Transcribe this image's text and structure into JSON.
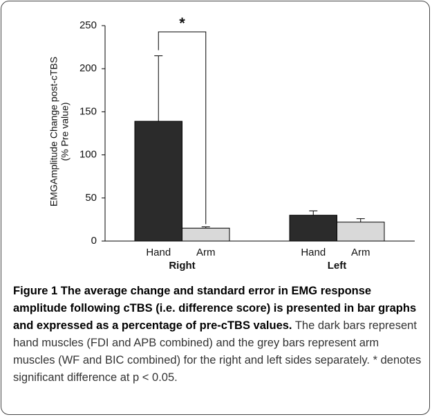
{
  "chart_data": {
    "type": "bar",
    "y_label": [
      "EMGAmplitude Change post-cTBS",
      "(% Pre value)"
    ],
    "categories": [
      "Right",
      "Left"
    ],
    "series": [
      {
        "name": "Hand",
        "color": "#2b2b2b",
        "values": [
          139,
          30
        ],
        "errors": [
          76,
          5
        ]
      },
      {
        "name": "Arm",
        "color": "#d9d9d9",
        "values": [
          15,
          22
        ],
        "errors": [
          1.5,
          4
        ]
      }
    ],
    "annotation": "*",
    "ylim": [
      0,
      250
    ],
    "yticks": [
      0,
      50,
      100,
      150,
      200,
      250
    ]
  },
  "caption": {
    "label": "Figure 1",
    "title": "The average change and standard error in EMG response amplitude following cTBS (i.e. difference score) is presented in bar graphs and expressed as a percentage of pre-cTBS values.",
    "text": "The dark bars represent hand muscles (FDI and APB combined) and the grey bars represent arm muscles (WF and BIC combined) for the right and left sides separately. * denotes significant difference at p < 0.05."
  }
}
